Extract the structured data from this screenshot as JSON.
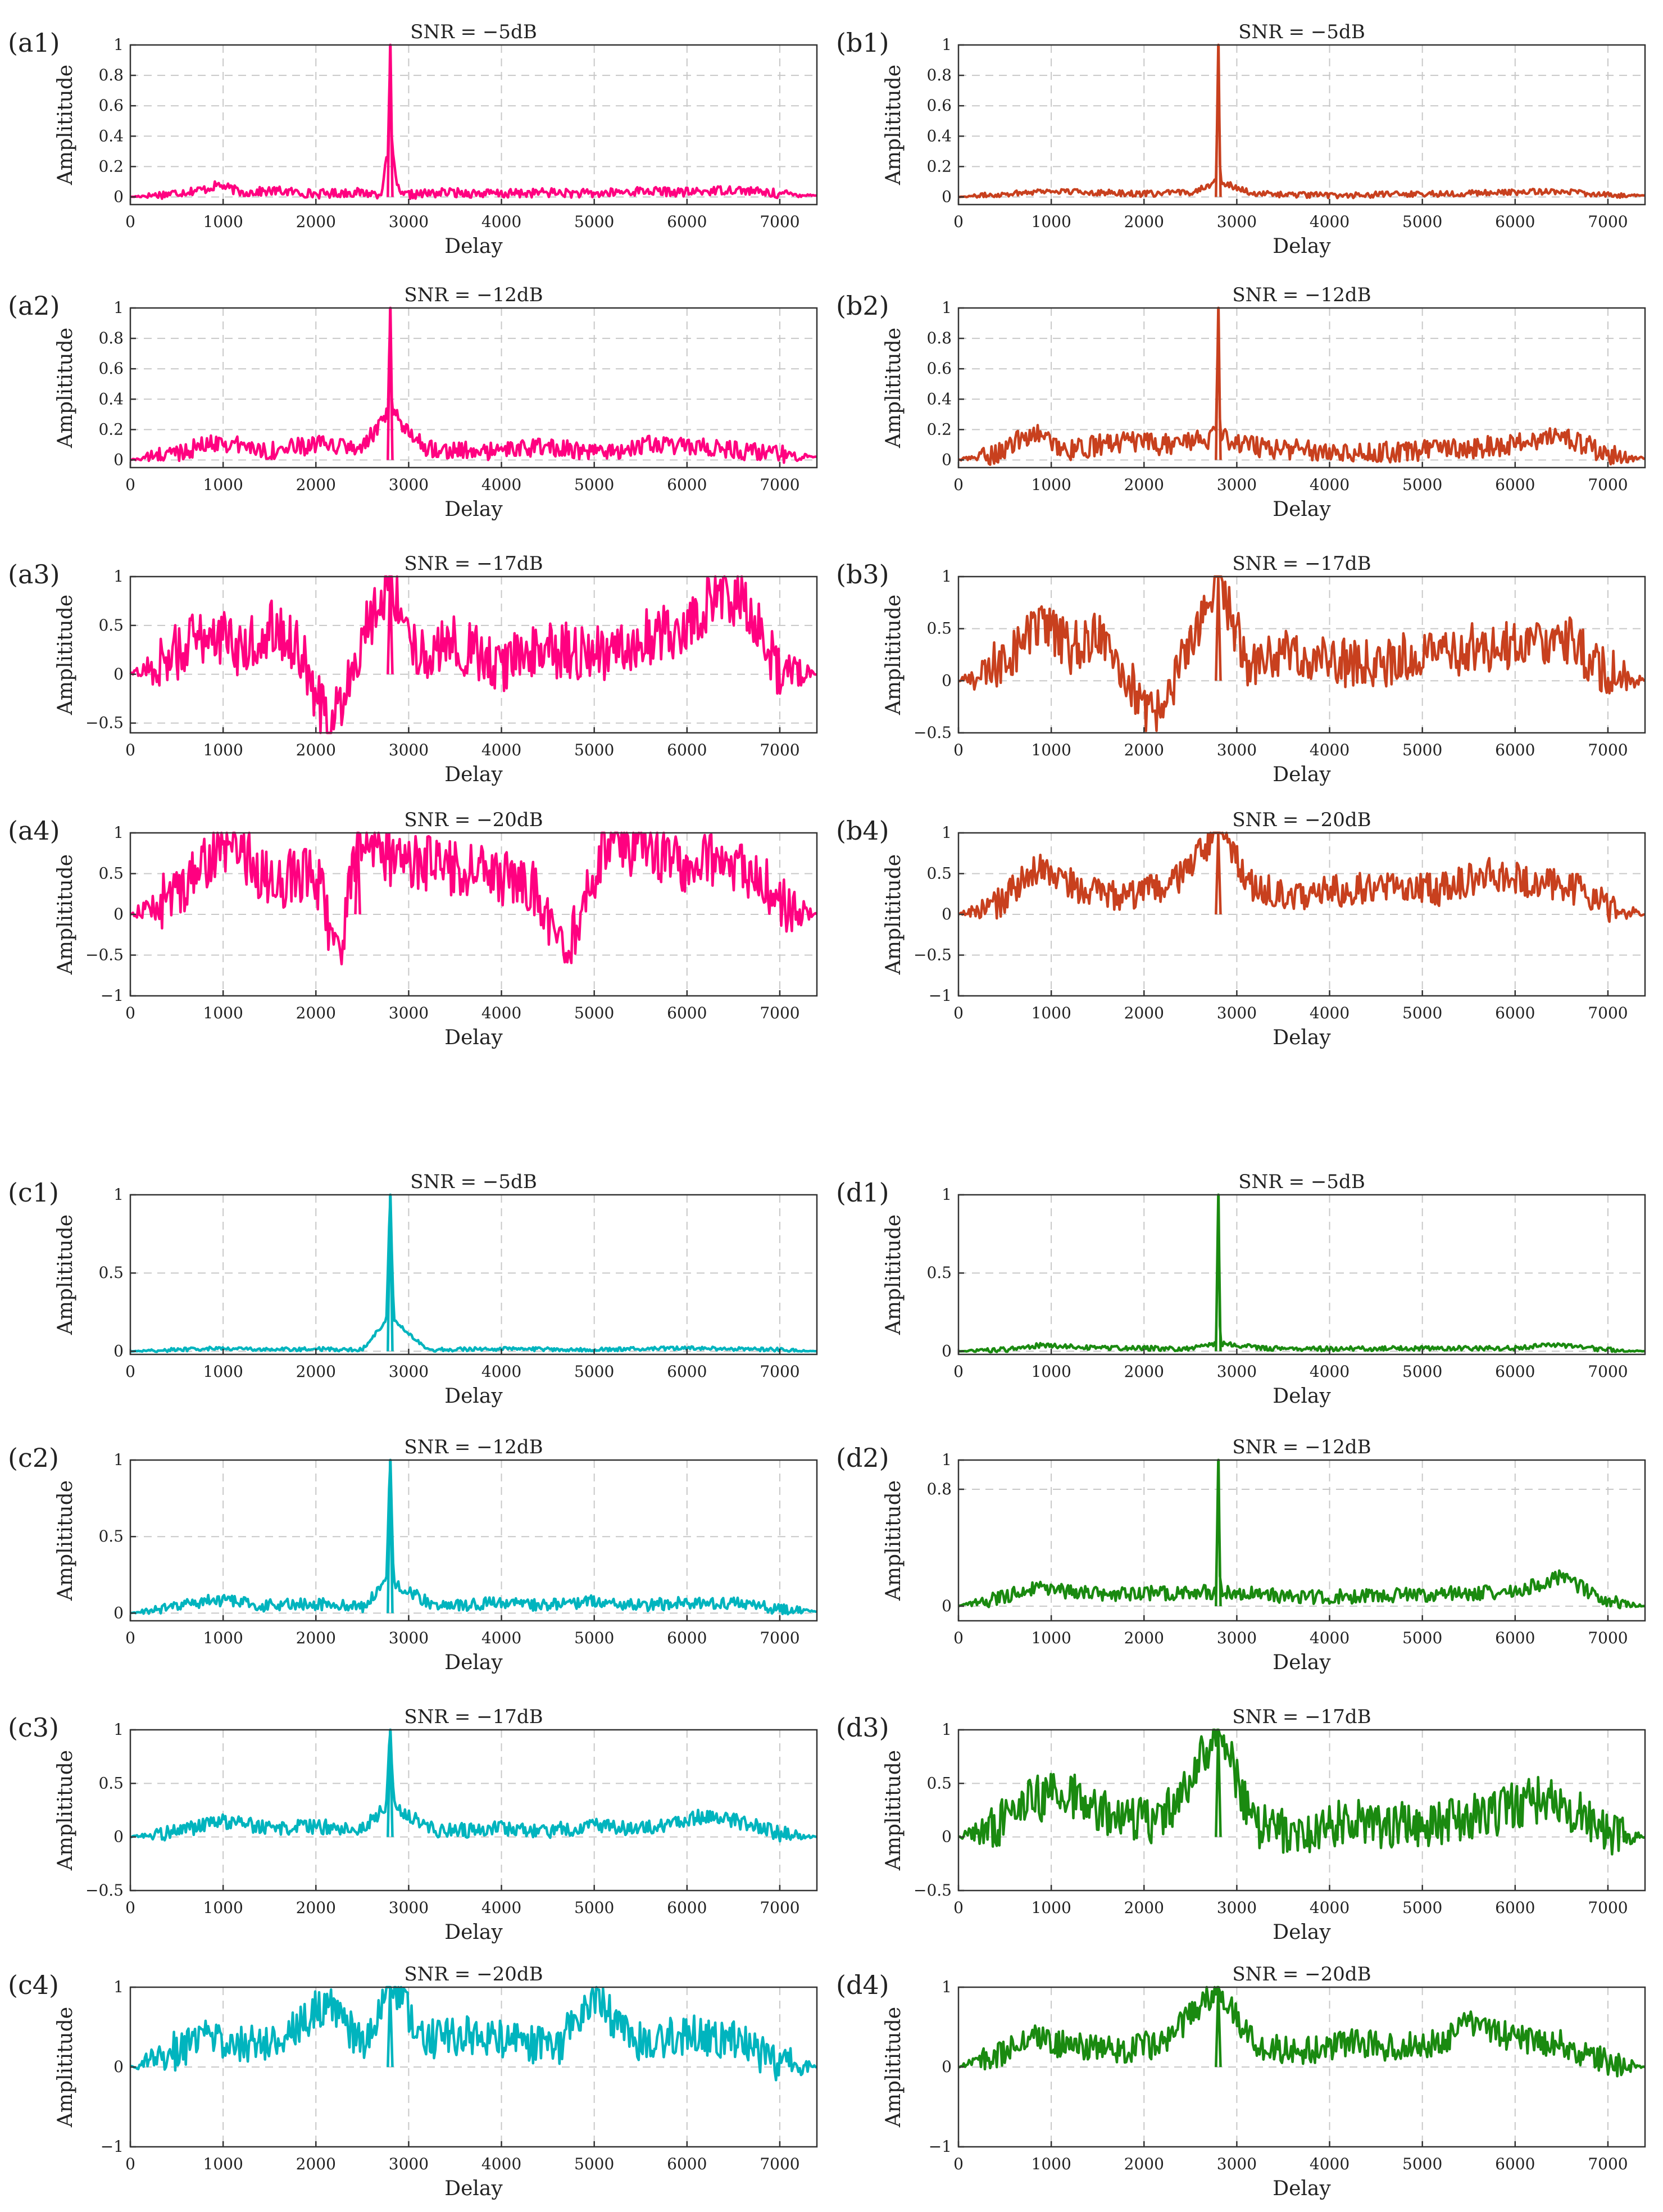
{
  "figure": {
    "xlabel": "Delay",
    "ylabel": "Amplititude"
  },
  "chart_data": [
    {
      "id": "a1",
      "type": "line",
      "label": "(a1)",
      "title": "SNR = −5dB",
      "xlabel": "Delay",
      "ylabel": "Amplititude",
      "xlim": [
        0,
        7400
      ],
      "ylim": [
        -0.05,
        1
      ],
      "xticks": [
        0,
        1000,
        2000,
        3000,
        4000,
        5000,
        6000,
        7000
      ],
      "yticks": [
        0,
        0.2,
        0.4,
        0.6,
        0.8,
        1
      ],
      "ytick_labels": [
        "0",
        "0.2",
        "0.4",
        "0.6",
        "0.8",
        "1"
      ],
      "color": "#ff0080",
      "peak": {
        "x": 2800,
        "y": 1.0
      },
      "noise_amplitude": 0.03,
      "x": [
        0,
        400,
        800,
        950,
        1200,
        1600,
        2000,
        2400,
        2700,
        2780,
        2800,
        2820,
        2900,
        3400,
        4000,
        4500,
        5000,
        5500,
        6000,
        6500,
        7000,
        7400
      ],
      "y": [
        0,
        0.02,
        0.05,
        0.08,
        0.03,
        0.04,
        0.02,
        0.03,
        0.02,
        0.3,
        1.0,
        0.3,
        0.01,
        0.03,
        0.02,
        0.03,
        0.02,
        0.04,
        0.03,
        0.05,
        0.02,
        0.01
      ]
    },
    {
      "id": "b1",
      "type": "line",
      "label": "(b1)",
      "title": "SNR = −5dB",
      "xlabel": "Delay",
      "ylabel": "Amplititude",
      "xlim": [
        0,
        7400
      ],
      "ylim": [
        -0.05,
        1
      ],
      "xticks": [
        0,
        1000,
        2000,
        3000,
        4000,
        5000,
        6000,
        7000
      ],
      "yticks": [
        0,
        0.2,
        0.4,
        0.6,
        0.8,
        1
      ],
      "ytick_labels": [
        "0",
        "0.2",
        "0.4",
        "0.6",
        "0.8",
        "1"
      ],
      "color": "#c8401e",
      "peak": {
        "x": 2800,
        "y": 1.0
      },
      "noise_amplitude": 0.02,
      "x": [
        0,
        500,
        900,
        1500,
        2000,
        2500,
        2780,
        2800,
        2820,
        3200,
        4000,
        5000,
        6000,
        6500,
        7000,
        7400
      ],
      "y": [
        0,
        0.02,
        0.04,
        0.03,
        0.02,
        0.03,
        0.1,
        1.0,
        0.1,
        0.02,
        0.01,
        0.02,
        0.03,
        0.04,
        0.01,
        0.01
      ]
    },
    {
      "id": "a2",
      "type": "line",
      "label": "(a2)",
      "title": "SNR = −12dB",
      "xlabel": "Delay",
      "ylabel": "Amplititude",
      "xlim": [
        0,
        7400
      ],
      "ylim": [
        -0.05,
        1
      ],
      "xticks": [
        0,
        1000,
        2000,
        3000,
        4000,
        5000,
        6000,
        7000
      ],
      "yticks": [
        0,
        0.2,
        0.4,
        0.6,
        0.8,
        1
      ],
      "ytick_labels": [
        "0",
        "0.2",
        "0.4",
        "0.6",
        "0.8",
        "1"
      ],
      "color": "#ff0080",
      "peak": {
        "x": 2800,
        "y": 1.0
      },
      "noise_amplitude": 0.06,
      "x": [
        0,
        500,
        950,
        1500,
        2000,
        2500,
        2780,
        2800,
        2820,
        3200,
        3800,
        4500,
        5000,
        5600,
        6200,
        6800,
        7400
      ],
      "y": [
        0,
        0.05,
        0.12,
        0.06,
        0.1,
        0.08,
        0.3,
        1.0,
        0.3,
        0.08,
        0.05,
        0.09,
        0.04,
        0.1,
        0.08,
        0.05,
        0.02
      ]
    },
    {
      "id": "b2",
      "type": "line",
      "label": "(b2)",
      "title": "SNR = −12dB",
      "xlabel": "Delay",
      "ylabel": "Amplititude",
      "xlim": [
        0,
        7400
      ],
      "ylim": [
        -0.05,
        1
      ],
      "xticks": [
        0,
        1000,
        2000,
        3000,
        4000,
        5000,
        6000,
        7000
      ],
      "yticks": [
        0,
        0.2,
        0.4,
        0.6,
        0.8,
        1
      ],
      "ytick_labels": [
        "0",
        "0.2",
        "0.4",
        "0.6",
        "0.8",
        "1"
      ],
      "color": "#c8401e",
      "peak": {
        "x": 2800,
        "y": 1.0
      },
      "noise_amplitude": 0.07,
      "x": [
        0,
        400,
        800,
        1200,
        1700,
        2200,
        2780,
        2800,
        2820,
        3300,
        4000,
        4700,
        5200,
        5800,
        6500,
        7000,
        7400
      ],
      "y": [
        0,
        0.04,
        0.18,
        0.06,
        0.12,
        0.1,
        0.15,
        1.0,
        0.15,
        0.08,
        0.06,
        0.05,
        0.07,
        0.09,
        0.17,
        0.03,
        0.01
      ]
    },
    {
      "id": "a3",
      "type": "line",
      "label": "(a3)",
      "title": "SNR = −17dB",
      "xlabel": "Delay",
      "ylabel": "Amplititude",
      "xlim": [
        0,
        7400
      ],
      "ylim": [
        -0.6,
        1
      ],
      "xticks": [
        0,
        1000,
        2000,
        3000,
        4000,
        5000,
        6000,
        7000
      ],
      "yticks": [
        -0.5,
        0,
        0.5,
        1
      ],
      "ytick_labels": [
        "−0.5",
        "0",
        "0.5",
        "1"
      ],
      "color": "#ff0080",
      "peak": {
        "x": 2800,
        "y": 1.0
      },
      "noise_amplitude": 0.3,
      "x": [
        0,
        300,
        600,
        900,
        1200,
        1500,
        1800,
        2150,
        2500,
        2800,
        3100,
        3500,
        4000,
        4500,
        5000,
        5500,
        6000,
        6300,
        6600,
        7000,
        7400
      ],
      "y": [
        0,
        0.1,
        0.3,
        0.45,
        0.2,
        0.5,
        0.3,
        -0.6,
        0.4,
        1.0,
        0.2,
        0.3,
        0.1,
        0.25,
        0.2,
        0.35,
        0.5,
        0.8,
        0.75,
        0.05,
        0
      ]
    },
    {
      "id": "b3",
      "type": "line",
      "label": "(b3)",
      "title": "SNR = −17dB",
      "xlabel": "Delay",
      "ylabel": "Amplititude",
      "xlim": [
        0,
        7400
      ],
      "ylim": [
        -0.5,
        1
      ],
      "xticks": [
        0,
        1000,
        2000,
        3000,
        4000,
        5000,
        6000,
        7000
      ],
      "yticks": [
        -0.5,
        0,
        0.5,
        1
      ],
      "ytick_labels": [
        "−0.5",
        "0",
        "0.5",
        "1"
      ],
      "color": "#c8401e",
      "peak": {
        "x": 2800,
        "y": 1.0
      },
      "noise_amplitude": 0.25,
      "x": [
        0,
        300,
        600,
        900,
        1200,
        1600,
        2050,
        2500,
        2800,
        3100,
        3600,
        4000,
        4500,
        5000,
        5500,
        6000,
        6500,
        7000,
        7400
      ],
      "y": [
        0,
        0.05,
        0.3,
        0.55,
        0.3,
        0.45,
        -0.4,
        0.3,
        1.0,
        0.2,
        0.25,
        0.2,
        0.15,
        0.25,
        0.3,
        0.35,
        0.45,
        0.05,
        0
      ]
    },
    {
      "id": "a4",
      "type": "line",
      "label": "(a4)",
      "title": "SNR = −20dB",
      "xlabel": "Delay",
      "ylabel": "Amplititude",
      "xlim": [
        0,
        7400
      ],
      "ylim": [
        -1,
        1
      ],
      "xticks": [
        0,
        1000,
        2000,
        3000,
        4000,
        5000,
        6000,
        7000
      ],
      "yticks": [
        -1,
        -0.5,
        0,
        0.5,
        1
      ],
      "ytick_labels": [
        "−1",
        "−0.5",
        "0",
        "0.5",
        "1"
      ],
      "color": "#ff0080",
      "peak": {
        "x": 2450,
        "y": 1.0
      },
      "noise_amplitude": 0.35,
      "x": [
        0,
        300,
        700,
        1100,
        1500,
        2000,
        2250,
        2450,
        2800,
        3300,
        3800,
        4300,
        4700,
        5100,
        5600,
        6000,
        6400,
        6800,
        7100,
        7400
      ],
      "y": [
        0,
        0.1,
        0.5,
        0.9,
        0.4,
        0.5,
        -0.6,
        1.0,
        0.7,
        0.6,
        0.5,
        0.4,
        -0.5,
        0.85,
        0.8,
        0.6,
        0.7,
        0.4,
        0.05,
        0
      ]
    },
    {
      "id": "b4",
      "type": "line",
      "label": "(b4)",
      "title": "SNR = −20dB",
      "xlabel": "Delay",
      "ylabel": "Amplititude",
      "xlim": [
        0,
        7400
      ],
      "ylim": [
        -1,
        1
      ],
      "xticks": [
        0,
        1000,
        2000,
        3000,
        4000,
        5000,
        6000,
        7000
      ],
      "yticks": [
        -1,
        -0.5,
        0,
        0.5,
        1
      ],
      "ytick_labels": [
        "−1",
        "−0.5",
        "0",
        "0.5",
        "1"
      ],
      "color": "#c8401e",
      "peak": {
        "x": 2800,
        "y": 1.0
      },
      "noise_amplitude": 0.2,
      "x": [
        0,
        400,
        900,
        1300,
        1800,
        2300,
        2800,
        3200,
        3700,
        4200,
        4700,
        5200,
        5700,
        6200,
        6700,
        7100,
        7400
      ],
      "y": [
        0,
        0.1,
        0.6,
        0.3,
        0.2,
        0.35,
        1.0,
        0.3,
        0.25,
        0.3,
        0.35,
        0.3,
        0.5,
        0.4,
        0.3,
        0.05,
        0
      ]
    },
    {
      "id": "c1",
      "type": "line",
      "label": "(c1)",
      "title": "SNR = −5dB",
      "xlabel": "Delay",
      "ylabel": "Amplititude",
      "xlim": [
        0,
        7400
      ],
      "ylim": [
        -0.02,
        1
      ],
      "xticks": [
        0,
        1000,
        2000,
        3000,
        4000,
        5000,
        6000,
        7000
      ],
      "yticks": [
        0,
        0.5,
        1
      ],
      "ytick_labels": [
        "0",
        "0.5",
        "1"
      ],
      "color": "#00b4be",
      "peak": {
        "x": 2800,
        "y": 1.0
      },
      "noise_amplitude": 0.012,
      "x": [
        0,
        500,
        1000,
        1500,
        2000,
        2500,
        2760,
        2800,
        2840,
        3200,
        4000,
        5000,
        6000,
        7000,
        7400
      ],
      "y": [
        0,
        0.01,
        0.02,
        0.01,
        0.015,
        0.01,
        0.2,
        1.0,
        0.2,
        0.01,
        0.015,
        0.01,
        0.02,
        0.01,
        0
      ]
    },
    {
      "id": "d1",
      "type": "line",
      "label": "(d1)",
      "title": "SNR = −5dB",
      "xlabel": "Delay",
      "ylabel": "Amplititude",
      "xlim": [
        0,
        7400
      ],
      "ylim": [
        -0.02,
        1
      ],
      "xticks": [
        0,
        1000,
        2000,
        3000,
        4000,
        5000,
        6000,
        7000
      ],
      "yticks": [
        0,
        0.5,
        1
      ],
      "ytick_labels": [
        "0",
        "0.5",
        "1"
      ],
      "color": "#1a8a10",
      "peak": {
        "x": 2800,
        "y": 1.0
      },
      "noise_amplitude": 0.015,
      "x": [
        0,
        500,
        900,
        1500,
        2000,
        2500,
        2780,
        2800,
        2820,
        3300,
        4000,
        5000,
        6000,
        6400,
        7000,
        7400
      ],
      "y": [
        0,
        0.01,
        0.04,
        0.02,
        0.02,
        0.015,
        0.05,
        1.0,
        0.05,
        0.02,
        0.015,
        0.02,
        0.02,
        0.04,
        0.01,
        0
      ]
    },
    {
      "id": "c2",
      "type": "line",
      "label": "(c2)",
      "title": "SNR = −12dB",
      "xlabel": "Delay",
      "ylabel": "Amplititude",
      "xlim": [
        0,
        7400
      ],
      "ylim": [
        -0.05,
        1
      ],
      "xticks": [
        0,
        1000,
        2000,
        3000,
        4000,
        5000,
        6000,
        7000
      ],
      "yticks": [
        0,
        0.5,
        1
      ],
      "ytick_labels": [
        "0",
        "0.5",
        "1"
      ],
      "color": "#00b4be",
      "peak": {
        "x": 2800,
        "y": 1.0
      },
      "noise_amplitude": 0.04,
      "x": [
        0,
        500,
        900,
        1400,
        2000,
        2500,
        2760,
        2800,
        2840,
        3300,
        4000,
        4500,
        5000,
        5500,
        6000,
        6600,
        7000,
        7400
      ],
      "y": [
        0,
        0.04,
        0.09,
        0.05,
        0.06,
        0.04,
        0.2,
        1.0,
        0.2,
        0.04,
        0.07,
        0.05,
        0.08,
        0.05,
        0.07,
        0.06,
        0.03,
        0.01
      ]
    },
    {
      "id": "d2",
      "type": "line",
      "label": "(d2)",
      "title": "SNR = −12dB",
      "xlabel": "Delay",
      "ylabel": "Amplititude",
      "xlim": [
        0,
        7400
      ],
      "ylim": [
        -0.1,
        1
      ],
      "xticks": [
        0,
        1000,
        2000,
        3000,
        4000,
        5000,
        6000,
        7000
      ],
      "yticks": [
        0,
        0.8,
        1
      ],
      "ytick_labels": [
        "0",
        "0.8",
        "1"
      ],
      "color": "#1a8a10",
      "peak": {
        "x": 2800,
        "y": 1.0
      },
      "noise_amplitude": 0.05,
      "x": [
        0,
        400,
        800,
        1200,
        1700,
        2200,
        2780,
        2800,
        2820,
        3300,
        3800,
        4400,
        5000,
        5500,
        6000,
        6500,
        7000,
        7400
      ],
      "y": [
        0,
        0.05,
        0.12,
        0.1,
        0.08,
        0.09,
        0.1,
        1.0,
        0.1,
        0.08,
        0.06,
        0.07,
        0.08,
        0.09,
        0.1,
        0.2,
        0.03,
        0
      ]
    },
    {
      "id": "c3",
      "type": "line",
      "label": "(c3)",
      "title": "SNR = −17dB",
      "xlabel": "Delay",
      "ylabel": "Amplititude",
      "xlim": [
        0,
        7400
      ],
      "ylim": [
        -0.5,
        1
      ],
      "xticks": [
        0,
        1000,
        2000,
        3000,
        4000,
        5000,
        6000,
        7000
      ],
      "yticks": [
        -0.5,
        0,
        0.5,
        1
      ],
      "ytick_labels": [
        "−0.5",
        "0",
        "0.5",
        "1"
      ],
      "color": "#00b4be",
      "peak": {
        "x": 2800,
        "y": 1.0
      },
      "noise_amplitude": 0.07,
      "x": [
        0,
        500,
        1000,
        1500,
        2000,
        2500,
        2760,
        2800,
        2840,
        3300,
        4000,
        4500,
        5000,
        5500,
        6200,
        6700,
        7000,
        7400
      ],
      "y": [
        0,
        0.05,
        0.15,
        0.08,
        0.1,
        0.07,
        0.3,
        1.0,
        0.3,
        0.05,
        0.08,
        0.06,
        0.1,
        0.07,
        0.2,
        0.12,
        0.03,
        0
      ]
    },
    {
      "id": "d3",
      "type": "line",
      "label": "(d3)",
      "title": "SNR = −17dB",
      "xlabel": "Delay",
      "ylabel": "Amplititude",
      "xlim": [
        0,
        7400
      ],
      "ylim": [
        -0.5,
        1
      ],
      "xticks": [
        0,
        1000,
        2000,
        3000,
        4000,
        5000,
        6000,
        7000
      ],
      "yticks": [
        -0.5,
        0,
        0.5,
        1
      ],
      "ytick_labels": [
        "−0.5",
        "0",
        "0.5",
        "1"
      ],
      "color": "#1a8a10",
      "peak": {
        "x": 2800,
        "y": 1.0
      },
      "noise_amplitude": 0.22,
      "x": [
        0,
        400,
        800,
        1200,
        1700,
        2200,
        2800,
        3200,
        3700,
        4200,
        4700,
        5200,
        5700,
        6200,
        6500,
        7000,
        7400
      ],
      "y": [
        0,
        0.1,
        0.35,
        0.4,
        0.2,
        0.15,
        1.0,
        0.1,
        0.05,
        0.15,
        0.1,
        0.15,
        0.2,
        0.35,
        0.3,
        0.05,
        0
      ]
    },
    {
      "id": "c4",
      "type": "line",
      "label": "(c4)",
      "title": "SNR = −20dB",
      "xlabel": "Delay",
      "ylabel": "Amplititude",
      "xlim": [
        0,
        7400
      ],
      "ylim": [
        -1,
        1
      ],
      "xticks": [
        0,
        1000,
        2000,
        3000,
        4000,
        5000,
        6000,
        7000
      ],
      "yticks": [
        -1,
        0,
        1
      ],
      "ytick_labels": [
        "−1",
        "0",
        "1"
      ],
      "color": "#00b4be",
      "peak": {
        "x": 2800,
        "y": 1.0
      },
      "noise_amplitude": 0.25,
      "x": [
        0,
        400,
        800,
        1200,
        1600,
        2100,
        2500,
        2800,
        3200,
        3700,
        4200,
        4600,
        5000,
        5400,
        6000,
        6500,
        7000,
        7400
      ],
      "y": [
        0,
        0.15,
        0.4,
        0.3,
        0.35,
        0.8,
        0.3,
        1.0,
        0.35,
        0.4,
        0.3,
        0.25,
        0.9,
        0.3,
        0.4,
        0.35,
        0.05,
        0
      ]
    },
    {
      "id": "d4",
      "type": "line",
      "label": "(d4)",
      "title": "SNR = −20dB",
      "xlabel": "Delay",
      "ylabel": "Amplititude",
      "xlim": [
        0,
        7400
      ],
      "ylim": [
        -1,
        1
      ],
      "xticks": [
        0,
        1000,
        2000,
        3000,
        4000,
        5000,
        6000,
        7000
      ],
      "yticks": [
        -1,
        0,
        1
      ],
      "ytick_labels": [
        "−1",
        "0",
        "1"
      ],
      "color": "#1a8a10",
      "peak": {
        "x": 2800,
        "y": 1.0
      },
      "noise_amplitude": 0.18,
      "x": [
        0,
        400,
        800,
        1200,
        1700,
        2200,
        2800,
        3200,
        3700,
        4200,
        4700,
        5200,
        5500,
        6000,
        6500,
        7000,
        7400
      ],
      "y": [
        0,
        0.15,
        0.4,
        0.25,
        0.2,
        0.3,
        1.0,
        0.25,
        0.2,
        0.3,
        0.25,
        0.3,
        0.6,
        0.35,
        0.3,
        0.05,
        0
      ]
    }
  ]
}
